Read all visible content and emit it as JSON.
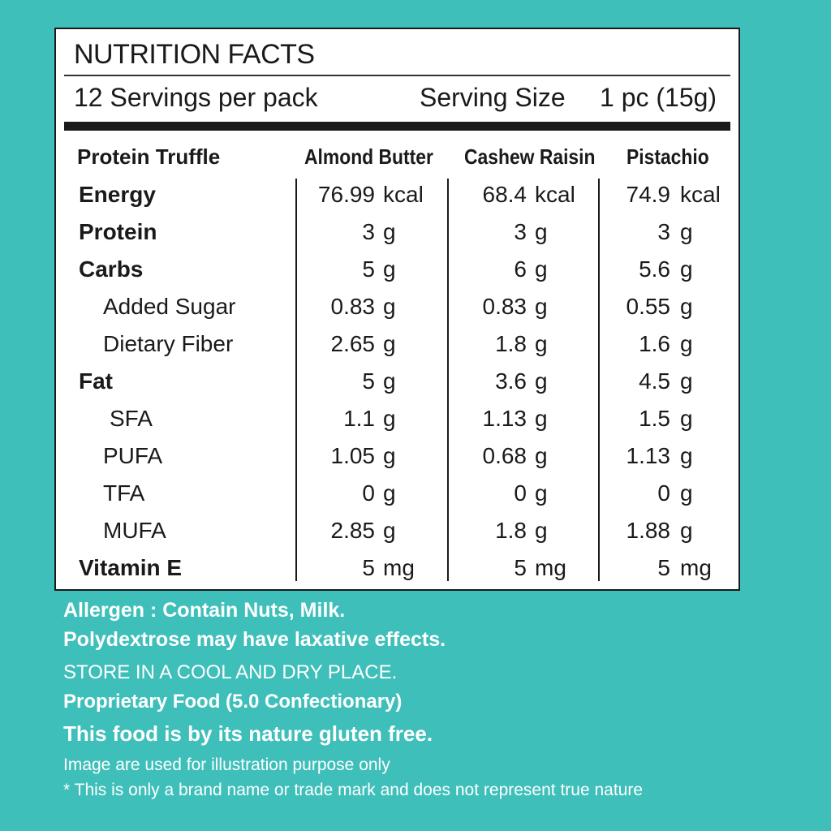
{
  "label": {
    "title": "NUTRITION FACTS",
    "servings_per_pack": "12 Servings per pack",
    "serving_size_label": "Serving Size",
    "serving_size_value": "1 pc (15g)",
    "product_header": "Protein Truffle",
    "columns": [
      "Almond Butter",
      "Cashew Raisin",
      "Pistachio"
    ],
    "rows": [
      {
        "name": "Energy",
        "bold": true,
        "indent": 0,
        "values": [
          "76.99",
          "68.4",
          "74.9"
        ],
        "unit": "kcal"
      },
      {
        "name": "Protein",
        "bold": true,
        "indent": 0,
        "values": [
          "3",
          "3",
          "3"
        ],
        "unit": "g"
      },
      {
        "name": "Carbs",
        "bold": true,
        "indent": 0,
        "values": [
          "5",
          "6",
          "5.6"
        ],
        "unit": "g"
      },
      {
        "name": "Added Sugar",
        "bold": false,
        "indent": 1,
        "values": [
          "0.83",
          "0.83",
          "0.55"
        ],
        "unit": "g"
      },
      {
        "name": "Dietary Fiber",
        "bold": false,
        "indent": 1,
        "values": [
          "2.65",
          "1.8",
          "1.6"
        ],
        "unit": "g"
      },
      {
        "name": "Fat",
        "bold": true,
        "indent": 0,
        "values": [
          "5",
          "3.6",
          "4.5"
        ],
        "unit": "g"
      },
      {
        "name": "SFA",
        "bold": false,
        "indent": 2,
        "values": [
          "1.1",
          "1.13",
          "1.5"
        ],
        "unit": "g"
      },
      {
        "name": "PUFA",
        "bold": false,
        "indent": 1,
        "values": [
          "1.05",
          "0.68",
          "1.13"
        ],
        "unit": "g"
      },
      {
        "name": "TFA",
        "bold": false,
        "indent": 1,
        "values": [
          "0",
          "0",
          "0"
        ],
        "unit": "g"
      },
      {
        "name": "MUFA",
        "bold": false,
        "indent": 1,
        "values": [
          "2.85",
          "1.8",
          "1.88"
        ],
        "unit": "g"
      },
      {
        "name": "Vitamin E",
        "bold": true,
        "indent": 0,
        "values": [
          "5",
          "5",
          "5"
        ],
        "unit": "mg"
      }
    ]
  },
  "footer": {
    "allergen": "Allergen : Contain Nuts, Milk.",
    "polydextrose": "Polydextrose may have laxative effects.",
    "storage": "STORE IN A COOL AND DRY PLACE.",
    "category": "Proprietary Food (5.0 Confectionary)",
    "gluten": "This food is by its nature gluten free.",
    "image_note": "Image are used for illustration purpose only",
    "brand_note": "* This is only a brand name or trade mark and does not represent true nature"
  },
  "colors": {
    "background": "#3fbfba",
    "panel": "#ffffff",
    "text": "#1a1a1a"
  }
}
